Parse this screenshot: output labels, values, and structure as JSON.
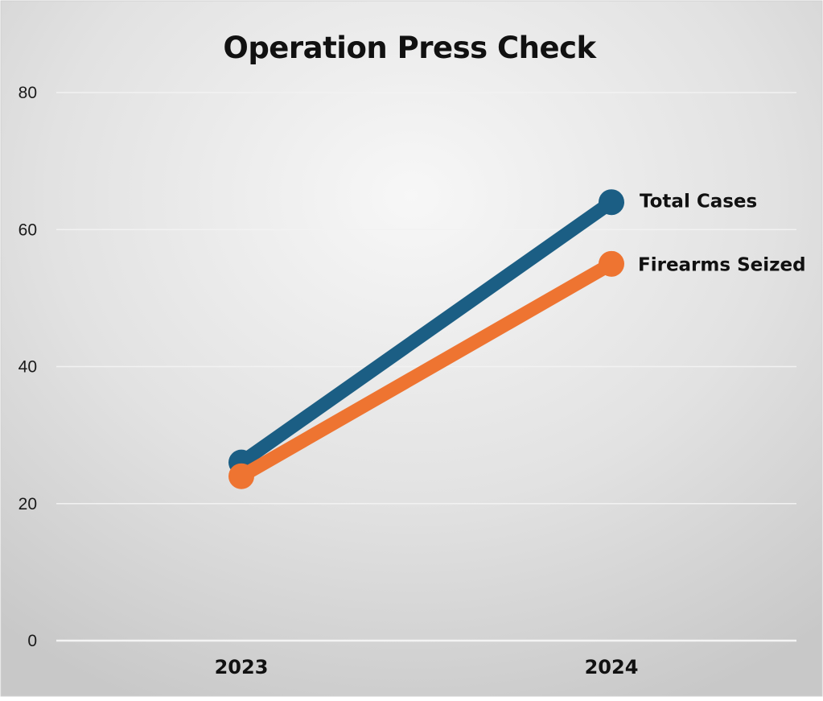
{
  "chart_data": {
    "type": "line",
    "title": "Operation Press Check",
    "xlabel": "",
    "ylabel": "",
    "categories": [
      "2023",
      "2024"
    ],
    "series": [
      {
        "name": "Total Cases",
        "values": [
          26,
          64
        ],
        "color": "#1b5e84"
      },
      {
        "name": "Firearms Seized",
        "values": [
          24,
          55
        ],
        "color": "#ee7431"
      }
    ],
    "ylim": [
      0,
      80
    ],
    "yticks": [
      0,
      20,
      40,
      60,
      80
    ],
    "grid": true,
    "legend": "series labels at line ends (right)"
  }
}
